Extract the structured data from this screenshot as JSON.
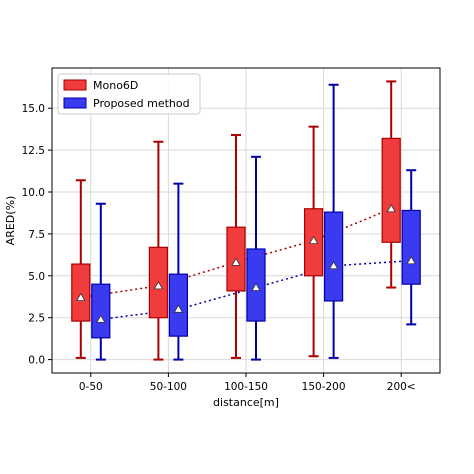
{
  "chart_data": {
    "type": "box",
    "categories": [
      "0-50",
      "50-100",
      "100-150",
      "150-200",
      "200<"
    ],
    "xlabel": "distance[m]",
    "ylabel": "ARED(%)",
    "ylim": [
      -0.8,
      17.4
    ],
    "yticks": [
      0.0,
      2.5,
      5.0,
      7.5,
      10.0,
      12.5,
      15.0
    ],
    "ytick_labels": [
      "0.0",
      "2.5",
      "5.0",
      "7.5",
      "10.0",
      "12.5",
      "15.0"
    ],
    "grid": true,
    "legend_position": "top-left",
    "series": [
      {
        "name": "Mono6D",
        "fill": "#f03c3c",
        "edge": "#aa0000",
        "boxes": [
          {
            "whislo": 0.1,
            "q1": 2.3,
            "q3": 5.7,
            "whishi": 10.7,
            "mean": 3.7
          },
          {
            "whislo": 0.0,
            "q1": 2.5,
            "q3": 6.7,
            "whishi": 13.0,
            "mean": 4.4
          },
          {
            "whislo": 0.1,
            "q1": 4.1,
            "q3": 7.9,
            "whishi": 13.4,
            "mean": 5.8
          },
          {
            "whislo": 0.2,
            "q1": 5.0,
            "q3": 9.0,
            "whishi": 13.9,
            "mean": 7.1
          },
          {
            "whislo": 4.3,
            "q1": 7.0,
            "q3": 13.2,
            "whishi": 16.6,
            "mean": 9.0
          }
        ]
      },
      {
        "name": "Proposed method",
        "fill": "#3a3af0",
        "edge": "#0000aa",
        "boxes": [
          {
            "whislo": 0.0,
            "q1": 1.3,
            "q3": 4.5,
            "whishi": 9.3,
            "mean": 2.4
          },
          {
            "whislo": 0.0,
            "q1": 1.4,
            "q3": 5.1,
            "whishi": 10.5,
            "mean": 3.0
          },
          {
            "whislo": 0.0,
            "q1": 2.3,
            "q3": 6.6,
            "whishi": 12.1,
            "mean": 4.3
          },
          {
            "whislo": 0.1,
            "q1": 3.5,
            "q3": 8.8,
            "whishi": 16.4,
            "mean": 5.6
          },
          {
            "whislo": 2.1,
            "q1": 4.5,
            "q3": 8.9,
            "whishi": 11.3,
            "mean": 5.9
          }
        ]
      }
    ]
  }
}
